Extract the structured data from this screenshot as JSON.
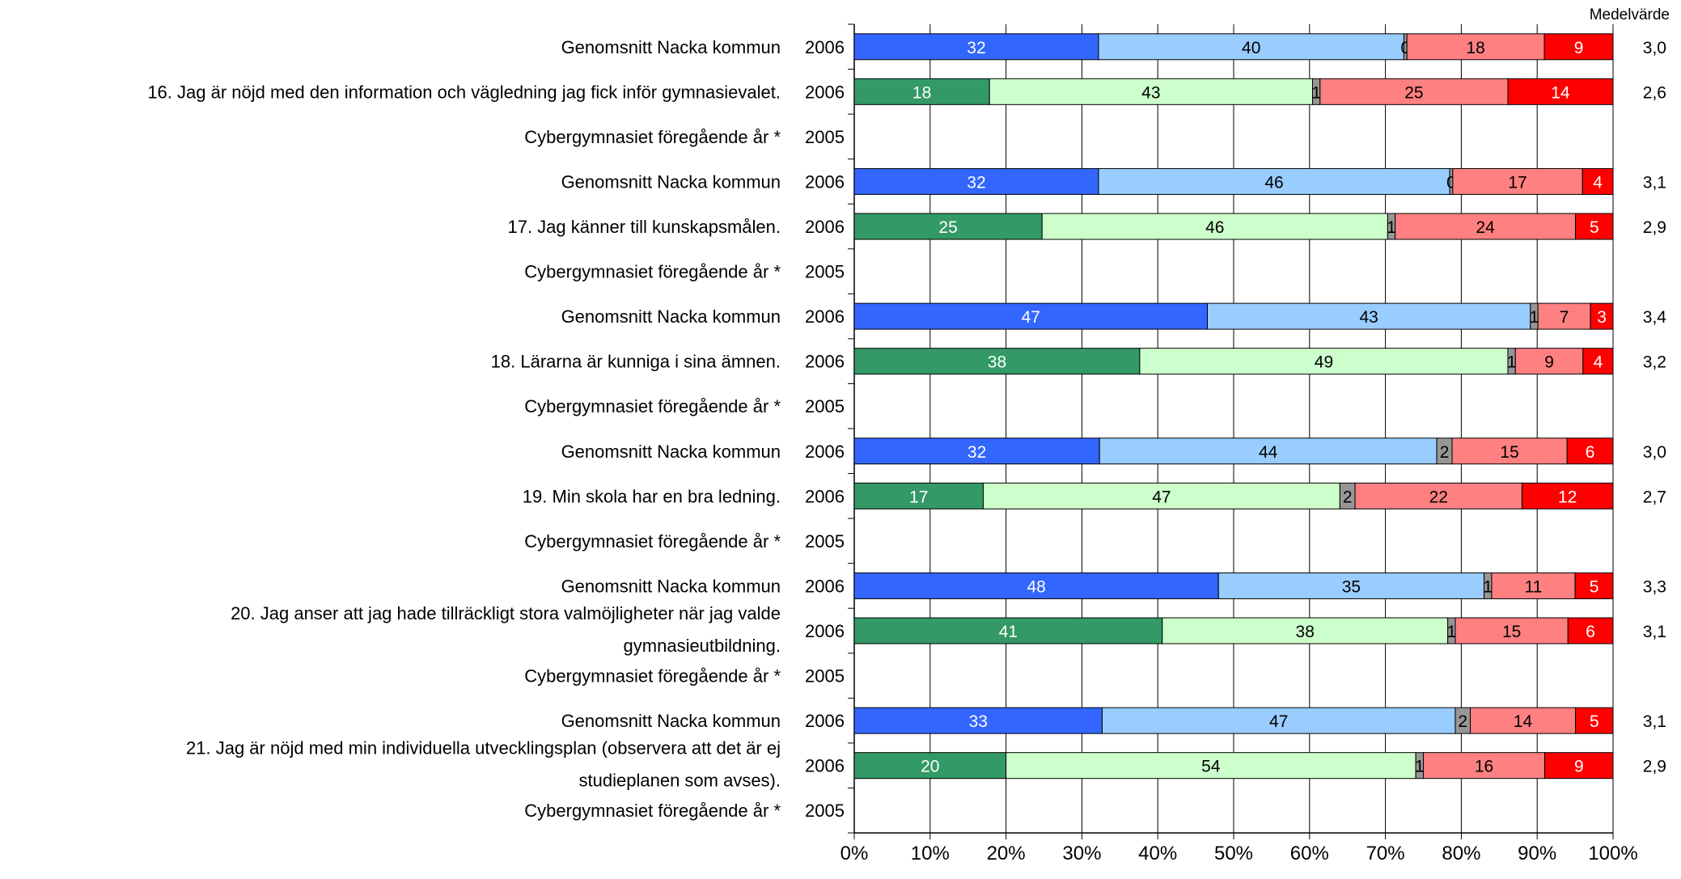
{
  "chart_data": {
    "type": "bar",
    "orientation": "horizontal",
    "stacked": true,
    "normalized": true,
    "xlim": [
      0,
      100
    ],
    "x_ticks": [
      "0%",
      "10%",
      "20%",
      "30%",
      "40%",
      "50%",
      "60%",
      "70%",
      "80%",
      "90%",
      "100%"
    ],
    "grid": true,
    "mean_header": "Medelvärde",
    "questions": [
      {
        "label": "16.  Jag är nöjd med den information och vägledning jag fick inför gymnasievalet.",
        "rows": [
          {
            "name": "Genomsnitt Nacka kommun",
            "year": "2006",
            "group": "nacka",
            "values": [
              32,
              40,
              0.4,
              18,
              9
            ],
            "mean": "3,0"
          },
          {
            "name": "",
            "year": "2006",
            "group": "school",
            "values": [
              18,
              43,
              1,
              25,
              14
            ],
            "mean": "2,6"
          },
          {
            "name": "Cybergymnasiet föregående år *",
            "year": "2005",
            "group": "prev",
            "values": [],
            "mean": ""
          }
        ]
      },
      {
        "label": "17.  Jag känner till kunskapsmålen.",
        "rows": [
          {
            "name": "Genomsnitt Nacka kommun",
            "year": "2006",
            "group": "nacka",
            "values": [
              32,
              46,
              0.4,
              17,
              4
            ],
            "mean": "3,1"
          },
          {
            "name": "",
            "year": "2006",
            "group": "school",
            "values": [
              25,
              46,
              1,
              24,
              5
            ],
            "mean": "2,9"
          },
          {
            "name": "Cybergymnasiet föregående år *",
            "year": "2005",
            "group": "prev",
            "values": [],
            "mean": ""
          }
        ]
      },
      {
        "label": "18.  Lärarna är kunniga i sina ämnen.",
        "rows": [
          {
            "name": "Genomsnitt Nacka kommun",
            "year": "2006",
            "group": "nacka",
            "values": [
              47,
              43,
              1,
              7,
              3
            ],
            "mean": "3,4"
          },
          {
            "name": "",
            "year": "2006",
            "group": "school",
            "values": [
              38,
              49,
              1,
              9,
              4
            ],
            "mean": "3,2"
          },
          {
            "name": "Cybergymnasiet föregående år *",
            "year": "2005",
            "group": "prev",
            "values": [],
            "mean": ""
          }
        ]
      },
      {
        "label": "19.  Min skola har en bra ledning.",
        "rows": [
          {
            "name": "Genomsnitt Nacka kommun",
            "year": "2006",
            "group": "nacka",
            "values": [
              32,
              44,
              2,
              15,
              6
            ],
            "mean": "3,0"
          },
          {
            "name": "",
            "year": "2006",
            "group": "school",
            "values": [
              17,
              47,
              2,
              22,
              12
            ],
            "mean": "2,7"
          },
          {
            "name": "Cybergymnasiet föregående år *",
            "year": "2005",
            "group": "prev",
            "values": [],
            "mean": ""
          }
        ]
      },
      {
        "label": "20.  Jag anser att jag hade tillräckligt stora valmöjligheter när jag valde gymnasieutbildning.",
        "label_lines": [
          "20.  Jag anser att jag hade tillräckligt stora valmöjligheter när jag valde",
          "gymnasieutbildning."
        ],
        "rows": [
          {
            "name": "Genomsnitt Nacka kommun",
            "year": "2006",
            "group": "nacka",
            "values": [
              48,
              35,
              1,
              11,
              5
            ],
            "mean": "3,3"
          },
          {
            "name": "",
            "year": "2006",
            "group": "school",
            "values": [
              41,
              38,
              1,
              15,
              6
            ],
            "mean": "3,1"
          },
          {
            "name": "Cybergymnasiet föregående år *",
            "year": "2005",
            "group": "prev",
            "values": [],
            "mean": ""
          }
        ]
      },
      {
        "label": "21.  Jag är nöjd med min individuella utvecklingsplan (observera att det är ej studieplanen som avses).",
        "label_lines": [
          "21.  Jag är nöjd med min individuella utvecklingsplan (observera att det är ej",
          "studieplanen som avses)."
        ],
        "rows": [
          {
            "name": "Genomsnitt Nacka kommun",
            "year": "2006",
            "group": "nacka",
            "values": [
              33,
              47,
              2,
              14,
              5
            ],
            "mean": "3,1"
          },
          {
            "name": "",
            "year": "2006",
            "group": "school",
            "values": [
              20,
              54,
              1,
              16,
              9
            ],
            "mean": "2,9"
          },
          {
            "name": "Cybergymnasiet föregående år *",
            "year": "2005",
            "group": "prev",
            "values": [],
            "mean": ""
          }
        ]
      }
    ],
    "colors": {
      "nacka": [
        "#3366ff",
        "#99ccff",
        "#969696",
        "#ff8080",
        "#ff0000"
      ],
      "school": [
        "#339966",
        "#ccffcc",
        "#969696",
        "#ff8080",
        "#ff0000"
      ],
      "label_on_dark": "#ffffff",
      "label_on_light": "#000000"
    }
  }
}
